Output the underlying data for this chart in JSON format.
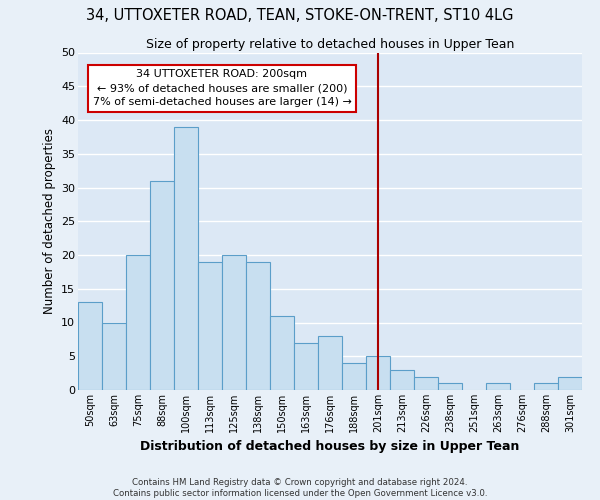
{
  "title": "34, UTTOXETER ROAD, TEAN, STOKE-ON-TRENT, ST10 4LG",
  "subtitle": "Size of property relative to detached houses in Upper Tean",
  "xlabel": "Distribution of detached houses by size in Upper Tean",
  "ylabel": "Number of detached properties",
  "bar_color": "#c8dff0",
  "bar_edge_color": "#5b9ec9",
  "background_color": "#dce8f5",
  "grid_color": "#ffffff",
  "fig_background": "#e8f0f8",
  "categories": [
    "50sqm",
    "63sqm",
    "75sqm",
    "88sqm",
    "100sqm",
    "113sqm",
    "125sqm",
    "138sqm",
    "150sqm",
    "163sqm",
    "176sqm",
    "188sqm",
    "201sqm",
    "213sqm",
    "226sqm",
    "238sqm",
    "251sqm",
    "263sqm",
    "276sqm",
    "288sqm",
    "301sqm"
  ],
  "values": [
    13,
    10,
    20,
    31,
    39,
    19,
    20,
    19,
    11,
    7,
    8,
    4,
    5,
    3,
    2,
    1,
    0,
    1,
    0,
    1,
    2
  ],
  "ylim": [
    0,
    50
  ],
  "yticks": [
    0,
    5,
    10,
    15,
    20,
    25,
    30,
    35,
    40,
    45,
    50
  ],
  "vline_x": 12,
  "vline_color": "#aa0000",
  "annotation_title": "34 UTTOXETER ROAD: 200sqm",
  "annotation_line1": "← 93% of detached houses are smaller (200)",
  "annotation_line2": "7% of semi-detached houses are larger (14) →",
  "annotation_box_facecolor": "#ffffff",
  "annotation_box_edgecolor": "#cc0000",
  "footer_line1": "Contains HM Land Registry data © Crown copyright and database right 2024.",
  "footer_line2": "Contains public sector information licensed under the Open Government Licence v3.0."
}
